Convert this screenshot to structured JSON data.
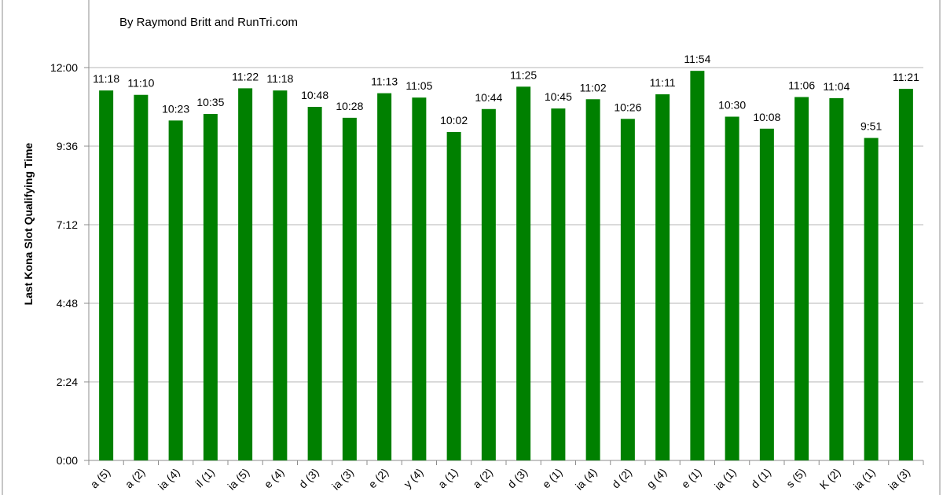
{
  "chart_data": {
    "type": "bar",
    "subtitle": "By Raymond Britt and RunTri.com",
    "ylabel": "Last Kona Slot Qualifying Time",
    "ylim": [
      0,
      720
    ],
    "yticks": [
      {
        "value": 0,
        "label": "0:00"
      },
      {
        "value": 144,
        "label": "2:24"
      },
      {
        "value": 288,
        "label": "4:48"
      },
      {
        "value": 432,
        "label": "7:12"
      },
      {
        "value": 576,
        "label": "9:36"
      },
      {
        "value": 720,
        "label": "12:00"
      }
    ],
    "grid": true,
    "bar_color": "#008000",
    "categories": [
      "a (5)",
      "a (2)",
      "ia (4)",
      "il (1)",
      "ia (5)",
      "e (4)",
      "d (3)",
      "ia (3)",
      "e (2)",
      "y (4)",
      "a (1)",
      "a (2)",
      "d (3)",
      "e (1)",
      "ia (4)",
      "d (2)",
      "g (4)",
      "e (1)",
      "ia (1)",
      "d (1)",
      "s (5)",
      "K (2)",
      "ia (1)",
      "ia (3)"
    ],
    "values": [
      678,
      670,
      623,
      635,
      682,
      678,
      648,
      628,
      673,
      665,
      602,
      644,
      685,
      645,
      662,
      626,
      671,
      714,
      630,
      608,
      666,
      664,
      591,
      681
    ],
    "labels": [
      "11:18",
      "11:10",
      "10:23",
      "10:35",
      "11:22",
      "11:18",
      "10:48",
      "10:28",
      "11:13",
      "11:05",
      "10:02",
      "10:44",
      "11:25",
      "10:45",
      "11:02",
      "10:26",
      "11:11",
      "11:54",
      "10:30",
      "10:08",
      "11:06",
      "11:04",
      "9:51",
      "11:21"
    ]
  }
}
